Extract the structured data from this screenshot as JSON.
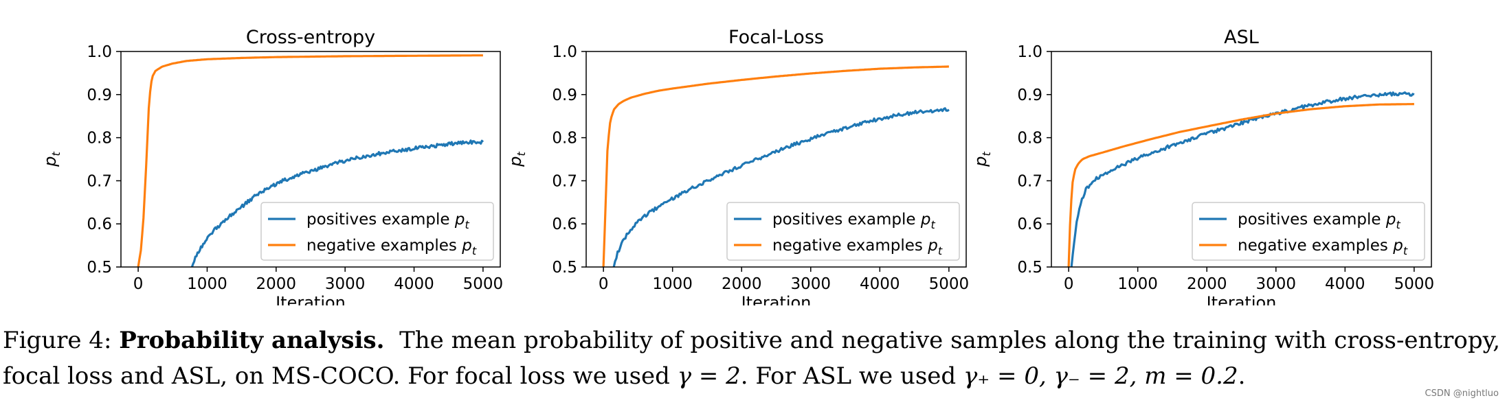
{
  "chart_data": [
    {
      "type": "line",
      "title": "Cross-entropy",
      "xlabel": "Iteration",
      "ylabel": "p_t",
      "xlim": [
        -250,
        5250
      ],
      "ylim": [
        0.5,
        1.0
      ],
      "xticks": [
        0,
        1000,
        2000,
        3000,
        4000,
        5000
      ],
      "yticks": [
        0.5,
        0.6,
        0.7,
        0.8,
        0.9,
        1.0
      ],
      "legend_position": "lower-right",
      "series": [
        {
          "name": "positives example p_t",
          "color": "#1f77b4",
          "noise": 0.004,
          "x": [
            780,
            850,
            950,
            1100,
            1300,
            1500,
            1700,
            1900,
            2100,
            2300,
            2500,
            2700,
            2900,
            3100,
            3300,
            3500,
            3700,
            3900,
            4100,
            4300,
            4500,
            4700,
            4850,
            5000
          ],
          "y": [
            0.5,
            0.53,
            0.555,
            0.585,
            0.615,
            0.64,
            0.665,
            0.685,
            0.7,
            0.712,
            0.722,
            0.732,
            0.742,
            0.75,
            0.757,
            0.763,
            0.768,
            0.773,
            0.777,
            0.781,
            0.785,
            0.788,
            0.79,
            0.79
          ]
        },
        {
          "name": "negative examples p_t",
          "color": "#ff7f0e",
          "noise": 0,
          "x": [
            0,
            40,
            80,
            120,
            160,
            200,
            250,
            350,
            500,
            700,
            1000,
            1500,
            2000,
            3000,
            4000,
            5000
          ],
          "y": [
            0.5,
            0.54,
            0.62,
            0.75,
            0.89,
            0.94,
            0.955,
            0.965,
            0.972,
            0.978,
            0.982,
            0.985,
            0.987,
            0.989,
            0.99,
            0.991
          ]
        }
      ]
    },
    {
      "type": "line",
      "title": "Focal-Loss",
      "xlabel": "Iteration",
      "ylabel": "p_t",
      "xlim": [
        -250,
        5250
      ],
      "ylim": [
        0.5,
        1.0
      ],
      "xticks": [
        0,
        1000,
        2000,
        3000,
        4000,
        5000
      ],
      "yticks": [
        0.5,
        0.6,
        0.7,
        0.8,
        0.9,
        1.0
      ],
      "legend_position": "lower-right",
      "series": [
        {
          "name": "positives example p_t",
          "color": "#1f77b4",
          "noise": 0.004,
          "x": [
            150,
            200,
            280,
            380,
            500,
            700,
            900,
            1100,
            1300,
            1500,
            1700,
            1900,
            2100,
            2300,
            2500,
            2700,
            2900,
            3100,
            3300,
            3500,
            3700,
            3900,
            4100,
            4300,
            4500,
            4700,
            4850,
            5000
          ],
          "y": [
            0.5,
            0.53,
            0.56,
            0.585,
            0.605,
            0.63,
            0.65,
            0.668,
            0.685,
            0.7,
            0.715,
            0.728,
            0.742,
            0.755,
            0.768,
            0.78,
            0.792,
            0.803,
            0.813,
            0.823,
            0.832,
            0.84,
            0.847,
            0.853,
            0.858,
            0.862,
            0.864,
            0.865
          ]
        },
        {
          "name": "negative examples p_t",
          "color": "#ff7f0e",
          "noise": 0,
          "x": [
            0,
            30,
            60,
            100,
            150,
            220,
            300,
            400,
            600,
            800,
            1000,
            1500,
            2000,
            2500,
            3000,
            3500,
            4000,
            4500,
            5000
          ],
          "y": [
            0.5,
            0.64,
            0.78,
            0.84,
            0.865,
            0.878,
            0.886,
            0.893,
            0.902,
            0.909,
            0.914,
            0.925,
            0.934,
            0.942,
            0.949,
            0.955,
            0.96,
            0.963,
            0.965
          ]
        }
      ]
    },
    {
      "type": "line",
      "title": "ASL",
      "xlabel": "Iteration",
      "ylabel": "p_t",
      "xlim": [
        -250,
        5250
      ],
      "ylim": [
        0.5,
        1.0
      ],
      "xticks": [
        0,
        1000,
        2000,
        3000,
        4000,
        5000
      ],
      "yticks": [
        0.5,
        0.6,
        0.7,
        0.8,
        0.9,
        1.0
      ],
      "legend_position": "lower-right",
      "series": [
        {
          "name": "positives example p_t",
          "color": "#1f77b4",
          "noise": 0.004,
          "x": [
            40,
            80,
            120,
            180,
            250,
            350,
            500,
            700,
            900,
            1100,
            1300,
            1500,
            1700,
            1900,
            2100,
            2300,
            2500,
            2700,
            2900,
            3100,
            3300,
            3500,
            3700,
            3900,
            4100,
            4300,
            4500,
            4700,
            4850,
            5000
          ],
          "y": [
            0.5,
            0.56,
            0.61,
            0.65,
            0.68,
            0.7,
            0.715,
            0.732,
            0.745,
            0.758,
            0.77,
            0.782,
            0.793,
            0.804,
            0.814,
            0.824,
            0.834,
            0.843,
            0.852,
            0.86,
            0.868,
            0.875,
            0.882,
            0.888,
            0.893,
            0.897,
            0.9,
            0.902,
            0.902,
            0.9
          ]
        },
        {
          "name": "negative examples p_t",
          "color": "#ff7f0e",
          "noise": 0,
          "x": [
            0,
            20,
            50,
            90,
            140,
            200,
            300,
            500,
            800,
            1200,
            1600,
            2000,
            2500,
            3000,
            3500,
            4000,
            4500,
            5000
          ],
          "y": [
            0.5,
            0.6,
            0.69,
            0.725,
            0.74,
            0.75,
            0.757,
            0.766,
            0.78,
            0.797,
            0.813,
            0.826,
            0.842,
            0.856,
            0.866,
            0.873,
            0.877,
            0.878
          ]
        }
      ]
    }
  ],
  "caption": {
    "prefix": "Figure 4: ",
    "bold": "Probability analysis.",
    "line1_rest": "  The mean probability of positive and negative samples along the training with cross-entropy,",
    "line2_text": "focal loss and ASL, on MS-COCO. For focal loss we used ",
    "gamma_eq": "γ = 2",
    "line2_mid": ". For ASL we used ",
    "gamma_plus_eq": "γ₊ = 0, γ₋ = 2, m = 0.2",
    "line2_end": "."
  },
  "watermark": "CSDN @nightluo"
}
